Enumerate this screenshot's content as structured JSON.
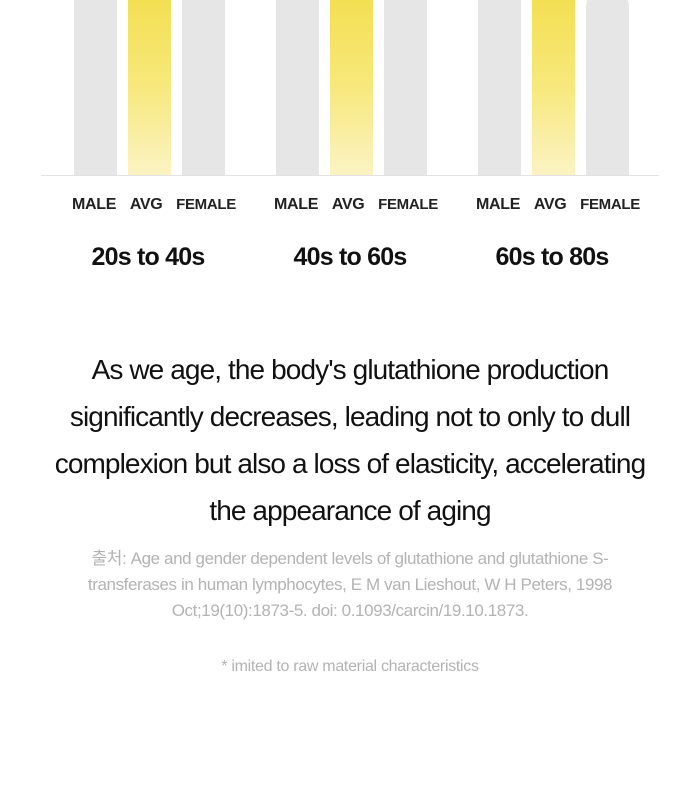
{
  "chart_data": {
    "type": "bar",
    "groups": [
      "20s to 40s",
      "40s to 60s",
      "60s to 80s"
    ],
    "categories": [
      "MALE",
      "AVG",
      "FEMALE"
    ],
    "series": [
      {
        "name": "MALE",
        "values": [
          1.0,
          1.0,
          1.0
        ]
      },
      {
        "name": "AVG",
        "values": [
          1.0,
          1.0,
          1.0
        ]
      },
      {
        "name": "FEMALE",
        "values": [
          1.0,
          1.0,
          0.92
        ]
      }
    ],
    "ylim": [
      0,
      1
    ],
    "title": "",
    "xlabel": "",
    "ylabel": "",
    "grid": false,
    "colors": {
      "MALE": "#e6e6e6",
      "AVG": "#f3dc45",
      "FEMALE": "#e6e6e6"
    }
  },
  "headline": "As we age, the body's glutathione production significantly decreases, leading not to only to dull complexion but also a loss of elasticity, accelerating the appearance of aging",
  "source": "출처: Age and gender dependent levels of glutathione and glutathione S-transferases in human lymphocytes, E M van Lieshout, W H Peters, 1998 Oct;19(10):1873-5. doi: 0.1093/carcin/19.10.1873.",
  "footnote": "*  imited to raw material characteristics"
}
